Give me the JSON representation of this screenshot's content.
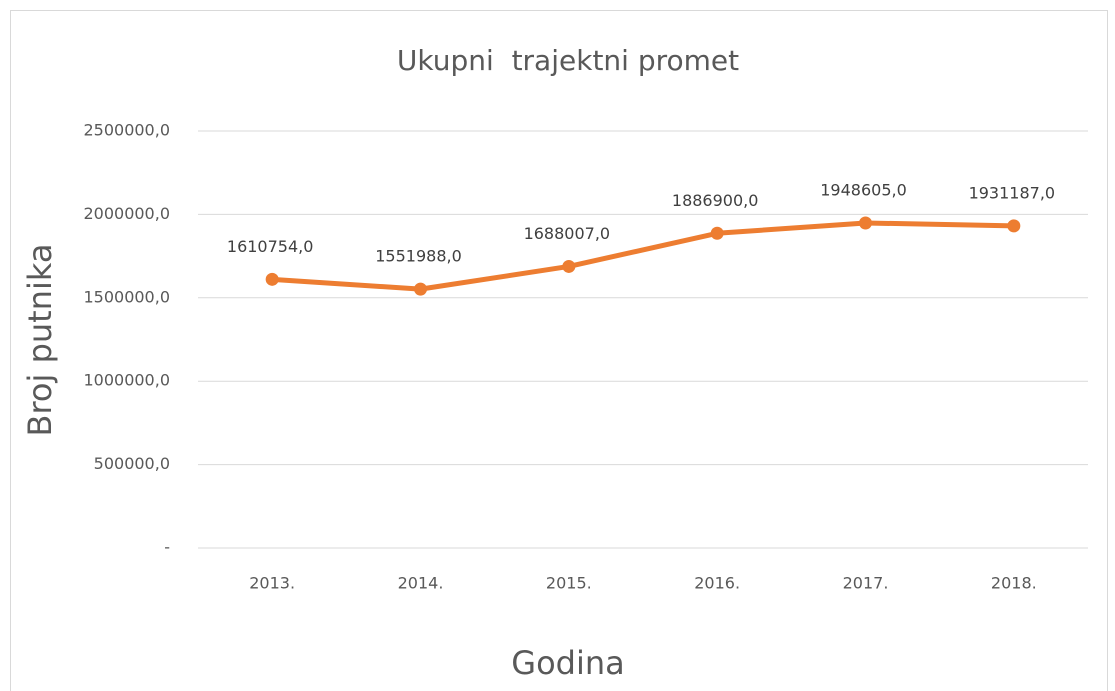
{
  "chart_data": {
    "type": "line",
    "title": "Ukupni  trajektni promet",
    "x_label": "Godina",
    "y_label": "Broj putnika",
    "categories": [
      "2013.",
      "2014.",
      "2015.",
      "2016.",
      "2017.",
      "2018."
    ],
    "series": [
      {
        "name": "Ukupni  trajektni promet",
        "color": "#ed7d31",
        "values": [
          1610754,
          1551988,
          1688007,
          1886900,
          1948605,
          1931187
        ],
        "value_labels": [
          "1610754,0",
          "1551988,0",
          "1688007,0",
          "1886900,0",
          "1948605,0",
          "1931187,0"
        ]
      }
    ],
    "ylim": [
      0,
      2500000
    ],
    "yticks": [
      {
        "value": 0,
        "label": "-"
      },
      {
        "value": 500000,
        "label": "500000,0"
      },
      {
        "value": 1000000,
        "label": "1000000,0"
      },
      {
        "value": 1500000,
        "label": "1500000,0"
      },
      {
        "value": 2000000,
        "label": "2000000,0"
      },
      {
        "value": 2500000,
        "label": "2500000,0"
      }
    ],
    "grid": true
  }
}
